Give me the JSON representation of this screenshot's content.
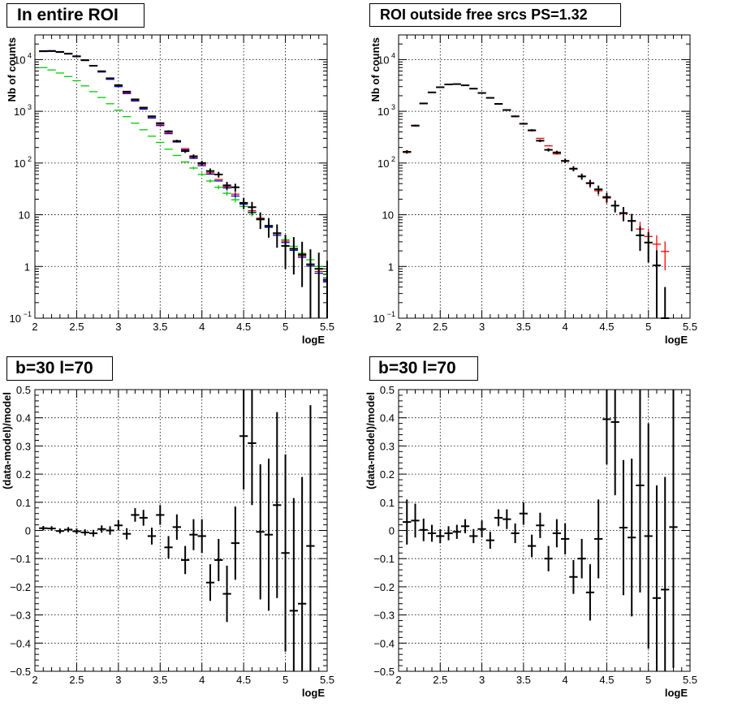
{
  "chart_data": [
    {
      "type": "scatter",
      "title": "In entire ROI",
      "xlabel": "logE",
      "ylabel": "Nb of counts",
      "yscale": "log",
      "xlim": [
        2,
        5.5
      ],
      "ylim": [
        0.1,
        30000
      ],
      "xticks": [
        "2",
        "2.5",
        "3",
        "3.5",
        "4",
        "4.5",
        "5",
        "5.5"
      ],
      "yticks": [
        {
          "value": 0.1,
          "base": "10",
          "exp": "−1"
        },
        {
          "value": 1,
          "base": "1",
          "exp": ""
        },
        {
          "value": 10,
          "base": "10",
          "exp": ""
        },
        {
          "value": 100,
          "base": "10",
          "exp": "2"
        },
        {
          "value": 1000,
          "base": "10",
          "exp": "3"
        },
        {
          "value": 10000,
          "base": "10",
          "exp": "4"
        }
      ],
      "grid": true,
      "colors": {
        "data": "#000000",
        "model": "#ff0000",
        "blue": "#0000cc",
        "green": "#00cc00"
      },
      "series": [
        {
          "color": "#ff0000",
          "values": [
            14500,
            14600,
            14000,
            13000,
            11600,
            9800,
            7700,
            5900,
            4300,
            3100,
            2300,
            1650,
            1150,
            780,
            560,
            390,
            270,
            190,
            130,
            95,
            65,
            48,
            35,
            25,
            17,
            12,
            8.6,
            6.1,
            4.3,
            3.1,
            2.2,
            1.6,
            1.1,
            0.8,
            0.55
          ],
          "errors": [
            0,
            0,
            0,
            0,
            0,
            0,
            0,
            0,
            0,
            0,
            0,
            0,
            0,
            0,
            0,
            0,
            0,
            0,
            0,
            0,
            0,
            0,
            4,
            3,
            2.5,
            2,
            1.6,
            1.3,
            1.1,
            0.9,
            0.8,
            0.7,
            0.55,
            0.45,
            0.4
          ]
        },
        {
          "color": "#0000cc",
          "values": [
            14300,
            14400,
            13800,
            12800,
            11400,
            9600,
            7500,
            5750,
            4150,
            3000,
            2200,
            1580,
            1100,
            740,
            530,
            370,
            255,
            180,
            123,
            89,
            61,
            45,
            33,
            23,
            16,
            11.2,
            8,
            5.7,
            4,
            2.9,
            2.05,
            1.5,
            1.02,
            0.74,
            0.51
          ],
          "errors": [
            0,
            0,
            0,
            0,
            0,
            0,
            0,
            0,
            0,
            0,
            0,
            0,
            0,
            0,
            0,
            0,
            0,
            0,
            0,
            0,
            0,
            0,
            3.5,
            2.8,
            2.2,
            1.8,
            1.5,
            1.2,
            1,
            0.8,
            0.7,
            0.6,
            0.5,
            0.42,
            0.36
          ]
        },
        {
          "color": "#00cc00",
          "values": [
            7000,
            6300,
            5500,
            4700,
            3900,
            3100,
            2400,
            1850,
            1400,
            1050,
            790,
            590,
            440,
            330,
            250,
            185,
            140,
            105,
            80,
            60,
            45,
            34,
            26,
            19.5,
            14.5,
            10.8,
            8,
            6,
            4.4,
            3.3,
            2.45,
            1.8,
            1.35,
            1,
            0.72
          ],
          "errors": [
            0,
            0,
            0,
            0,
            0,
            0,
            0,
            0,
            0,
            0,
            0,
            0,
            0,
            0,
            0,
            0,
            0,
            0,
            5,
            4,
            3.5,
            3,
            2.6,
            2.2,
            1.8,
            1.5,
            1.2,
            1,
            0.8,
            0.65,
            0.55,
            0.45,
            0.4,
            0.3,
            0.25
          ]
        },
        {
          "color": "#000000",
          "values": [
            14600,
            14700,
            14100,
            13050,
            11600,
            9750,
            7600,
            5950,
            4350,
            3200,
            2400,
            1700,
            1180,
            800,
            590,
            410,
            265,
            170,
            135,
            100,
            70,
            60,
            37,
            34,
            17,
            14,
            8.2,
            6.1,
            4.4,
            2.5,
            2.2,
            1.7,
            1.1,
            0.9,
            0.55
          ],
          "errors": [
            120,
            120,
            118,
            114,
            108,
            99,
            87,
            77,
            66,
            57,
            49,
            41,
            34,
            28,
            24,
            20,
            16,
            13,
            11.6,
            10,
            8.4,
            7.7,
            6.1,
            5.8,
            4.1,
            3.7,
            2.9,
            2.5,
            2.1,
            1.6,
            1.5,
            1.3,
            1.05,
            0.95,
            0.74
          ]
        }
      ]
    },
    {
      "type": "scatter",
      "title": "ROI outside free srcs PS=1.32",
      "xlabel": "logE",
      "ylabel": "Nb of counts",
      "yscale": "log",
      "xlim": [
        2,
        5.5
      ],
      "ylim": [
        0.1,
        30000
      ],
      "xticks": [
        "2",
        "2.5",
        "3",
        "3.5",
        "4",
        "4.5",
        "5",
        "5.5"
      ],
      "yticks": [
        {
          "value": 0.1,
          "base": "10",
          "exp": "−1"
        },
        {
          "value": 1,
          "base": "1",
          "exp": ""
        },
        {
          "value": 10,
          "base": "10",
          "exp": ""
        },
        {
          "value": 100,
          "base": "10",
          "exp": "2"
        },
        {
          "value": 1000,
          "base": "10",
          "exp": "3"
        },
        {
          "value": 10000,
          "base": "10",
          "exp": "4"
        }
      ],
      "grid": true,
      "series": [
        {
          "color": "#ff0000",
          "values": [
            160,
            520,
            1400,
            2300,
            2900,
            3300,
            3350,
            3200,
            2750,
            2250,
            1800,
            1400,
            1050,
            790,
            580,
            420,
            300,
            215,
            150,
            108,
            76,
            56,
            40,
            29,
            21,
            15,
            10.5,
            7.5,
            5.3,
            3.8,
            2.7,
            1.95
          ],
          "errors": [
            0,
            0,
            0,
            0,
            0,
            0,
            0,
            0,
            0,
            0,
            0,
            0,
            0,
            0,
            0,
            0,
            0,
            0,
            0,
            0,
            0,
            0,
            7,
            6,
            4.5,
            3.8,
            3,
            2.5,
            2,
            1.6,
            1.3,
            1.1
          ]
        },
        {
          "color": "#000000",
          "values": [
            165,
            530,
            1420,
            2320,
            2920,
            3310,
            3360,
            3180,
            2740,
            2260,
            1820,
            1390,
            1060,
            800,
            575,
            430,
            270,
            180,
            160,
            110,
            78,
            55,
            41,
            31,
            22,
            15,
            10.8,
            7.6,
            4,
            2.9,
            1.05,
            0.1
          ],
          "errors": [
            13,
            23,
            38,
            48,
            54,
            58,
            58,
            56,
            52,
            48,
            43,
            37,
            33,
            28,
            24,
            21,
            16,
            13,
            12.6,
            10.5,
            8.8,
            7.4,
            6.4,
            5.6,
            4.7,
            3.9,
            3.3,
            2.8,
            2,
            1.7,
            1,
            0.3
          ]
        }
      ]
    },
    {
      "type": "scatter",
      "title": "b=30 l=70",
      "xlabel": "logE",
      "ylabel": "(data-model)/model",
      "yscale": "linear",
      "xlim": [
        2,
        5.5
      ],
      "ylim": [
        -0.5,
        0.5
      ],
      "xticks": [
        "2",
        "2.5",
        "3",
        "3.5",
        "4",
        "4.5",
        "5",
        "5.5"
      ],
      "yticks": [
        "−0.5",
        "−0.4",
        "−0.3",
        "−0.2",
        "−0.1",
        "0",
        "0.1",
        "0.2",
        "0.3",
        "0.4",
        "0.5"
      ],
      "grid": true,
      "series": [
        {
          "color": "#000000",
          "values": [
            0.008,
            0.007,
            -0.002,
            0.003,
            -0.003,
            -0.007,
            -0.01,
            0.005,
            0,
            0.018,
            -0.012,
            0.055,
            0.045,
            -0.02,
            0.055,
            -0.06,
            0.012,
            -0.105,
            -0.015,
            -0.02,
            -0.185,
            -0.105,
            -0.225,
            -0.045,
            0.335,
            0.31,
            -0.005,
            -0.015,
            0.09,
            -0.08,
            -0.285,
            -0.26,
            -0.055
          ],
          "errors": [
            0.008,
            0.008,
            0.009,
            0.009,
            0.01,
            0.011,
            0.012,
            0.013,
            0.015,
            0.018,
            0.02,
            0.024,
            0.028,
            0.03,
            0.035,
            0.04,
            0.045,
            0.05,
            0.055,
            0.06,
            0.065,
            0.075,
            0.1,
            0.13,
            0.19,
            0.22,
            0.24,
            0.27,
            0.33,
            0.35,
            0.4,
            0.45,
            0.5
          ]
        }
      ]
    },
    {
      "type": "scatter",
      "title": "b=30 l=70",
      "xlabel": "logE",
      "ylabel": "(data-model)/model",
      "yscale": "linear",
      "xlim": [
        2,
        5.5
      ],
      "ylim": [
        -0.5,
        0.5
      ],
      "xticks": [
        "2",
        "2.5",
        "3",
        "3.5",
        "4",
        "4.5",
        "5",
        "5.5"
      ],
      "yticks": [
        "−0.5",
        "−0.4",
        "−0.3",
        "−0.2",
        "−0.1",
        "0",
        "0.1",
        "0.2",
        "0.3",
        "0.4",
        "0.5"
      ],
      "grid": true,
      "series": [
        {
          "color": "#000000",
          "values": [
            0.03,
            0.035,
            0.002,
            -0.01,
            -0.02,
            -0.01,
            -0.005,
            0.015,
            -0.02,
            0.005,
            -0.035,
            0.045,
            0.04,
            -0.01,
            0.06,
            -0.055,
            0.018,
            -0.1,
            -0.01,
            -0.03,
            -0.165,
            -0.1,
            -0.22,
            -0.03,
            0.395,
            0.385,
            0.01,
            -0.025,
            0.16,
            -0.02,
            -0.24,
            -0.21,
            0.012
          ],
          "errors": [
            0.08,
            0.06,
            0.04,
            0.03,
            0.025,
            0.025,
            0.025,
            0.025,
            0.025,
            0.03,
            0.03,
            0.03,
            0.035,
            0.035,
            0.04,
            0.04,
            0.045,
            0.045,
            0.05,
            0.055,
            0.06,
            0.07,
            0.1,
            0.14,
            0.16,
            0.26,
            0.24,
            0.28,
            0.38,
            0.4,
            0.4,
            0.4,
            0.5
          ]
        }
      ]
    }
  ]
}
